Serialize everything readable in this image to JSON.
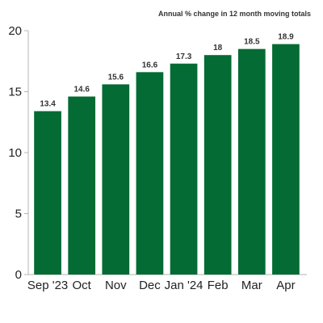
{
  "chart_data": {
    "type": "bar",
    "title": "",
    "subtitle": "Annual % change in 12 month moving totals",
    "xlabel": "",
    "ylabel": "",
    "categories": [
      "Sep '23",
      "Oct",
      "Nov",
      "Dec",
      "Jan '24",
      "Feb",
      "Mar",
      "Apr"
    ],
    "values": [
      13.4,
      14.6,
      15.6,
      16.6,
      17.3,
      18,
      18.5,
      18.9
    ],
    "data_labels": [
      "13.4",
      "14.6",
      "15.6",
      "16.6",
      "17.3",
      "18",
      "18.5",
      "18.9"
    ],
    "ylim": [
      0,
      20
    ],
    "yticks": [
      0,
      5,
      10,
      15,
      20
    ],
    "grid": false,
    "legend": "none",
    "bar_color": "#036b33"
  }
}
